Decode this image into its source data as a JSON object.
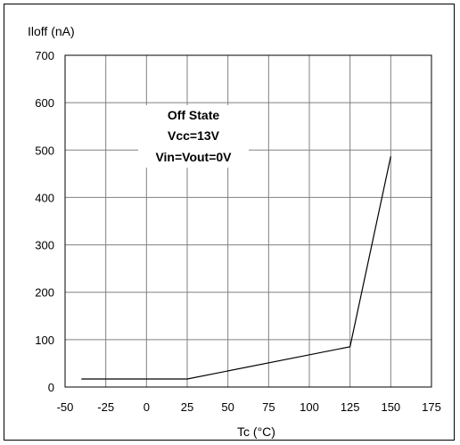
{
  "chart_data": {
    "type": "line",
    "ylabel": "Iloff (nA)",
    "xlabel": "Tc (°C)",
    "xlim": [
      -50,
      175
    ],
    "ylim": [
      0,
      700
    ],
    "xticks": [
      -50,
      -25,
      0,
      25,
      50,
      75,
      100,
      125,
      150,
      175
    ],
    "yticks": [
      0,
      100,
      200,
      300,
      400,
      500,
      600,
      700
    ],
    "grid": true,
    "annotation": [
      "Off State",
      "Vcc=13V",
      "Vin=Vout=0V"
    ],
    "series": [
      {
        "x": [
          -40,
          25,
          125,
          150
        ],
        "y": [
          17,
          17,
          85,
          487
        ]
      }
    ],
    "colors": {
      "line": "#000000",
      "grid": "#808080",
      "background": "#ffffff"
    }
  }
}
